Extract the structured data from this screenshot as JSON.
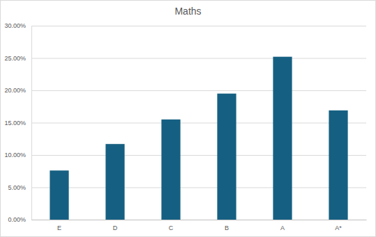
{
  "chart_data": {
    "type": "bar",
    "title": "Maths",
    "categories": [
      "E",
      "D",
      "C",
      "B",
      "A",
      "A*"
    ],
    "values": [
      7.6,
      11.7,
      15.5,
      19.5,
      25.2,
      16.9
    ],
    "color": "#156082",
    "ylim": [
      0,
      30
    ],
    "yticks": [
      {
        "value": 0,
        "label": "0.00%"
      },
      {
        "value": 5,
        "label": "5.00%"
      },
      {
        "value": 10,
        "label": "10.00%"
      },
      {
        "value": 15,
        "label": "15.00%"
      },
      {
        "value": 20,
        "label": "20.00%"
      },
      {
        "value": 25,
        "label": "25.00%"
      },
      {
        "value": 30,
        "label": "30.00%"
      }
    ],
    "grid": true
  }
}
